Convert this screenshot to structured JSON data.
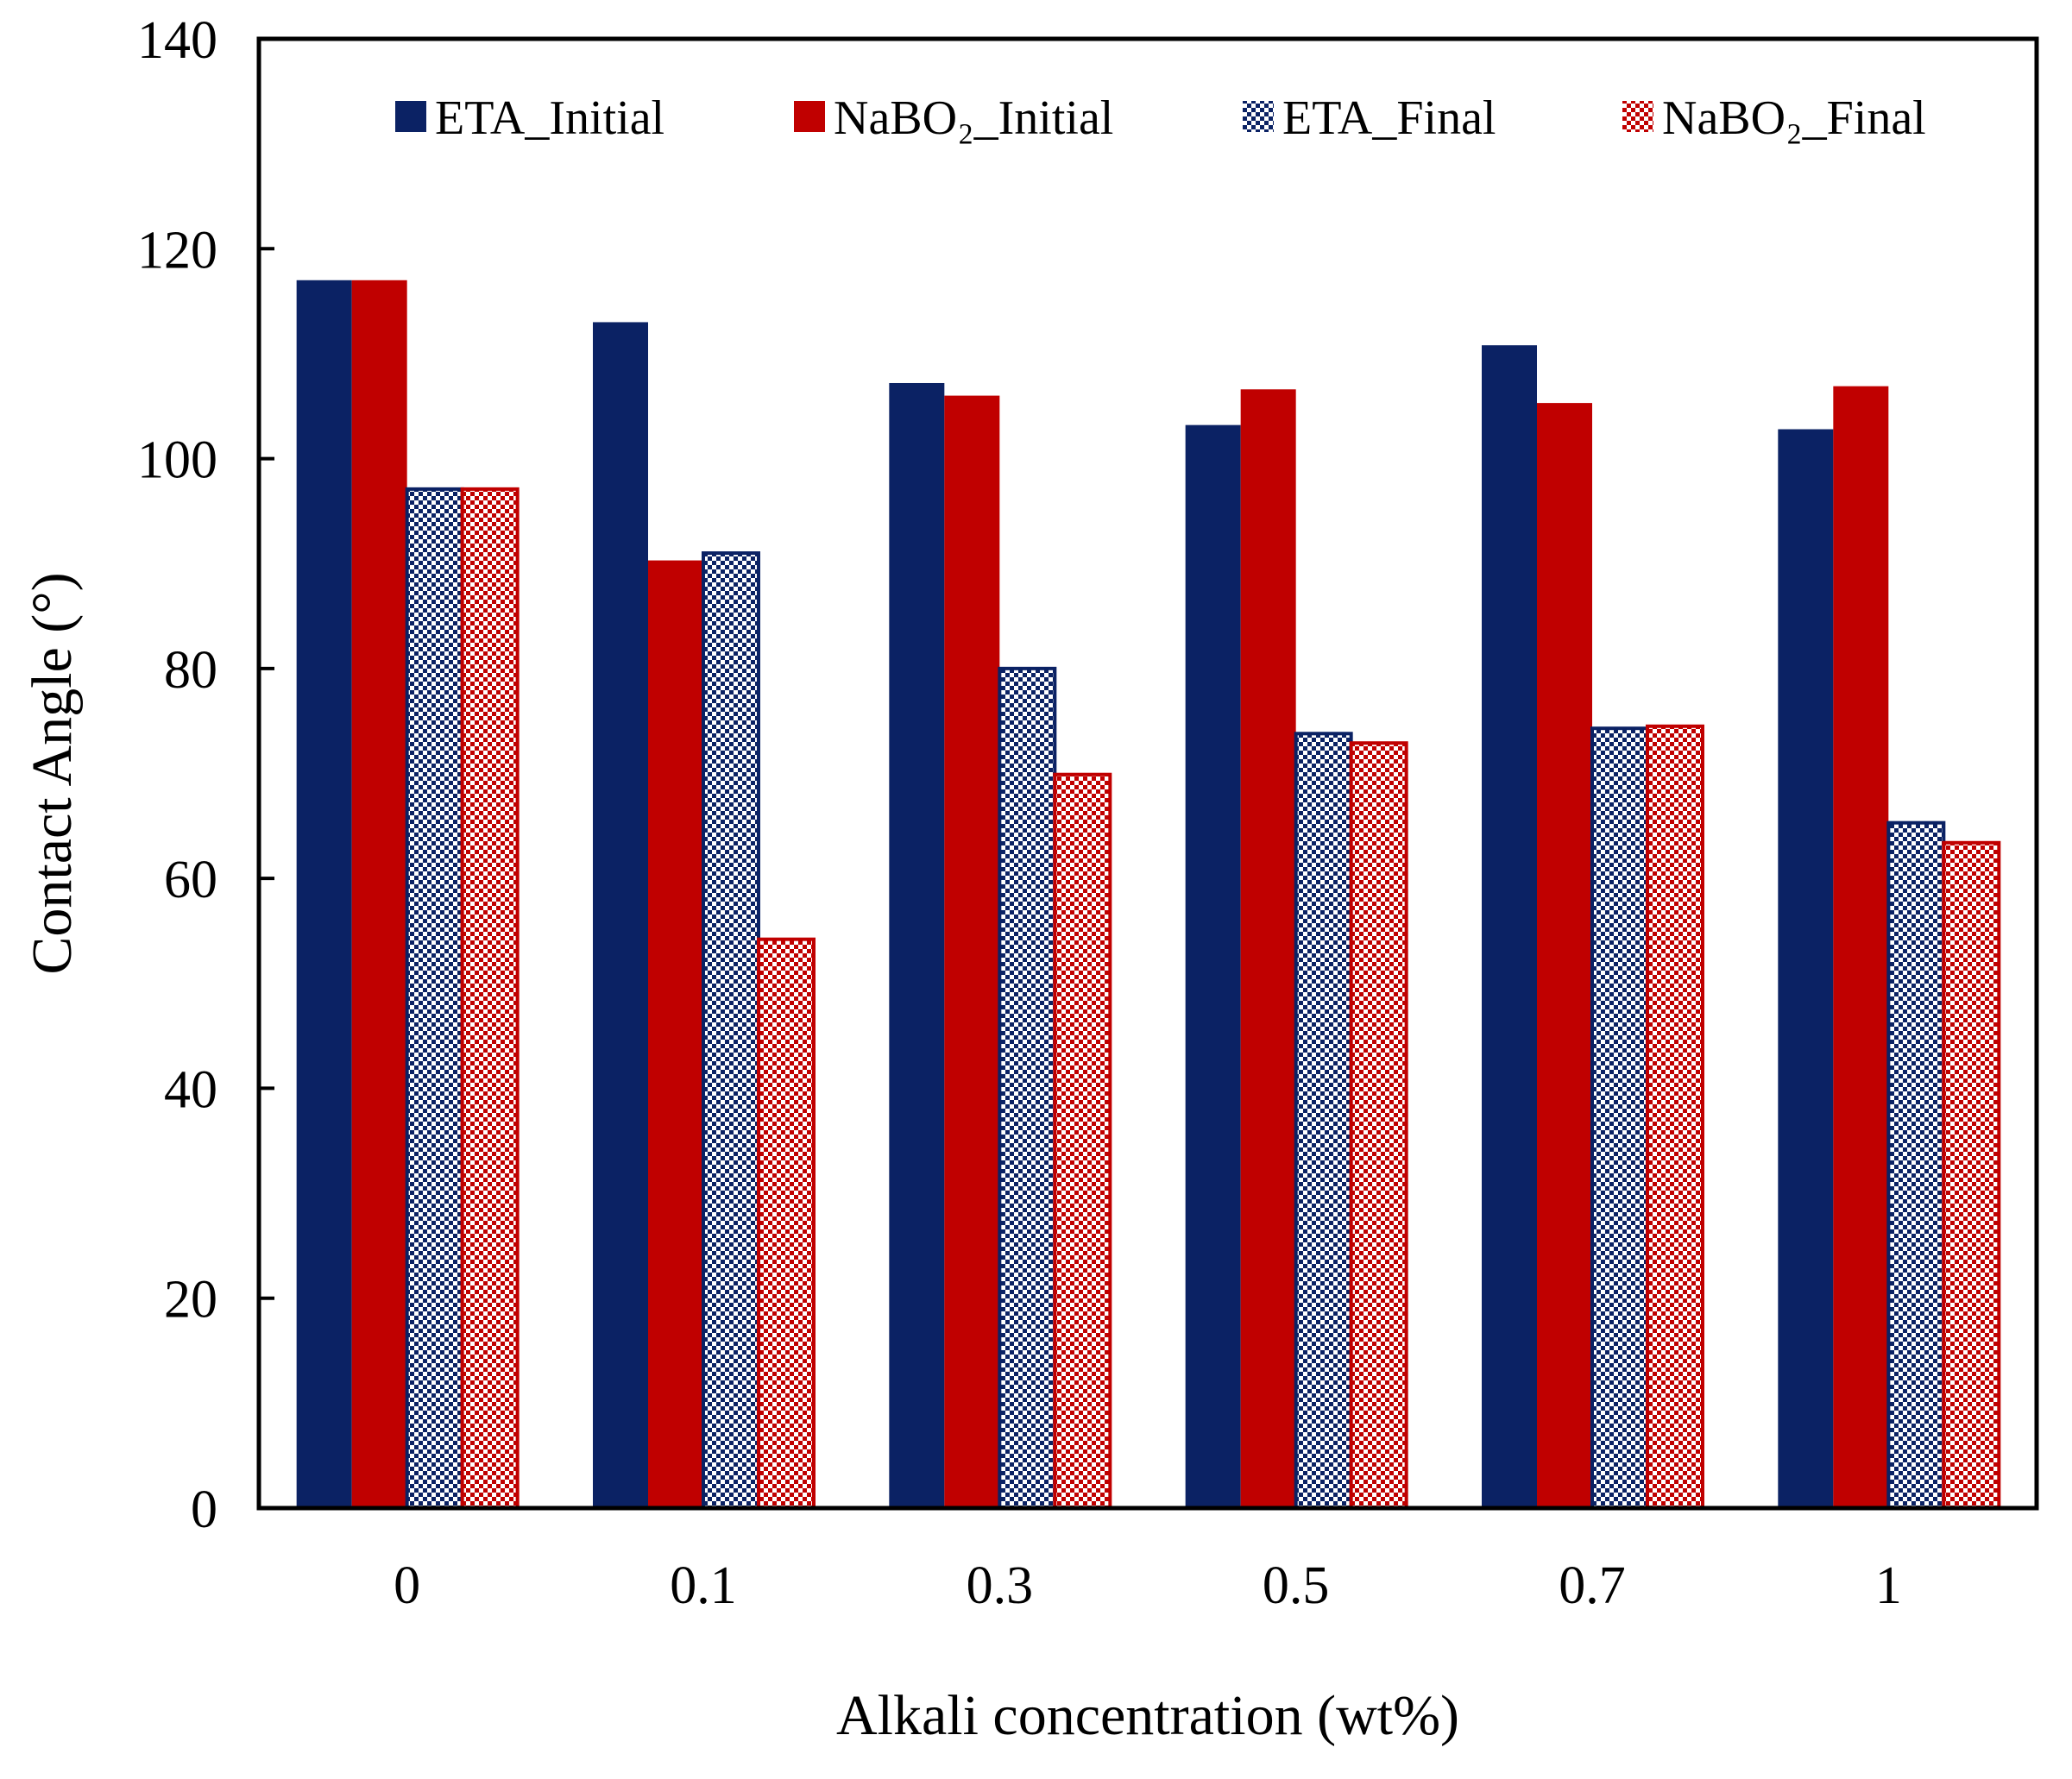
{
  "chart_data": {
    "type": "bar",
    "title": "",
    "xlabel": "Alkali concentration (wt%)",
    "ylabel": "Contact Angle (°)",
    "categories": [
      "0",
      "0.1",
      "0.3",
      "0.5",
      "0.7",
      "1"
    ],
    "ylim": [
      0,
      140
    ],
    "yticks": [
      "0",
      "20",
      "40",
      "60",
      "80",
      "100",
      "120",
      "140"
    ],
    "grid": false,
    "legend_position": "top",
    "series": [
      {
        "name": "ETA_Initial",
        "color": "#0b2264",
        "pattern": "solid",
        "values": [
          117,
          113,
          107.2,
          103.2,
          110.8,
          102.8
        ]
      },
      {
        "name": "NaBO₂_Initial",
        "color": "#c00000",
        "pattern": "solid",
        "values": [
          117,
          90.3,
          106,
          106.6,
          105.3,
          106.9
        ]
      },
      {
        "name": "ETA_Final",
        "color": "#0b2264",
        "pattern": "checker",
        "values": [
          97.1,
          91,
          80,
          73.8,
          74.3,
          65.3
        ]
      },
      {
        "name": "NaBO₂_Final",
        "color": "#c00000",
        "pattern": "checker",
        "values": [
          97.1,
          54.2,
          69.9,
          72.9,
          74.5,
          63.4
        ]
      }
    ]
  }
}
